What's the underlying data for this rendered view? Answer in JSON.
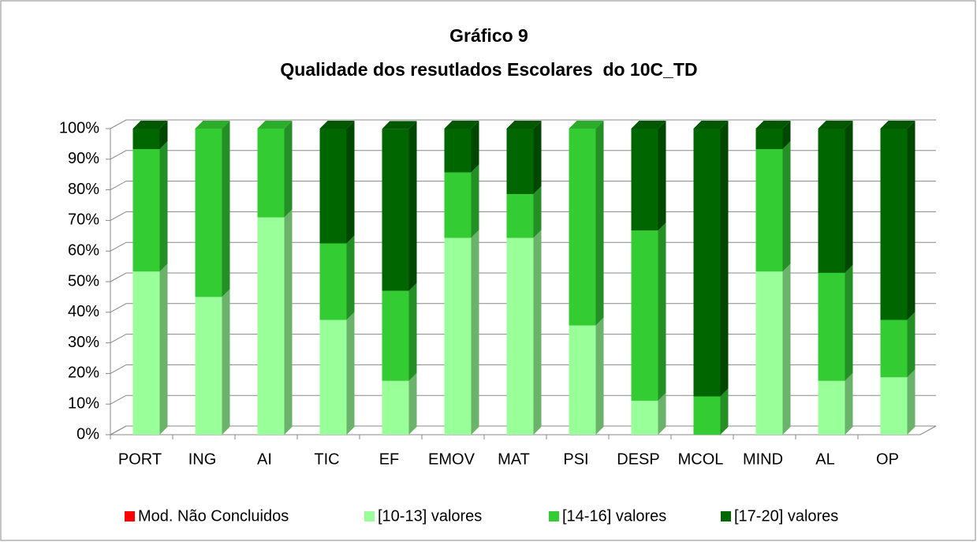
{
  "chart_data": {
    "type": "bar",
    "stacked": true,
    "title": "Gráfico 9",
    "subtitle": "Qualidade dos resutlados Escolares  do 10C_TD",
    "categories": [
      "PORT",
      "ING",
      "AI",
      "TIC",
      "EF",
      "EMOV",
      "MAT",
      "PSI",
      "DESP",
      "MCOL",
      "MIND",
      "AL",
      "OP"
    ],
    "series": [
      {
        "name": "Mod. Não Concluidos",
        "color": "#ff0000",
        "values": [
          0,
          0,
          0,
          0,
          0,
          0,
          0,
          0,
          0,
          0,
          0,
          0,
          0
        ]
      },
      {
        "name": "[10-13] valores",
        "color": "#99ff99",
        "values": [
          53.3,
          45,
          71,
          37.5,
          17.6,
          64.3,
          64.3,
          35.7,
          11.1,
          0,
          53.3,
          17.6,
          18.75
        ]
      },
      {
        "name": "[14-16] valores",
        "color": "#33cc33",
        "values": [
          40,
          55,
          29,
          25,
          29.4,
          21.4,
          14.3,
          64.3,
          55.6,
          12.5,
          40,
          35.3,
          18.75
        ]
      },
      {
        "name": "[17-20] valores",
        "color": "#006600",
        "values": [
          6.7,
          0,
          0,
          37.5,
          52.9,
          14.3,
          21.4,
          0,
          33.3,
          87.5,
          6.7,
          47.1,
          62.5
        ]
      }
    ],
    "ylim": [
      0,
      100
    ],
    "yticks": [
      {
        "value": 0,
        "label": "0%"
      },
      {
        "value": 10,
        "label": "10%"
      },
      {
        "value": 20,
        "label": "20%"
      },
      {
        "value": 30,
        "label": "30%"
      },
      {
        "value": 40,
        "label": "40%"
      },
      {
        "value": 50,
        "label": "50%"
      },
      {
        "value": 60,
        "label": "60%"
      },
      {
        "value": 70,
        "label": "70%"
      },
      {
        "value": 80,
        "label": "80%"
      },
      {
        "value": 90,
        "label": "90%"
      },
      {
        "value": 100,
        "label": "100%"
      }
    ],
    "grid": true,
    "legend": "bottom"
  }
}
